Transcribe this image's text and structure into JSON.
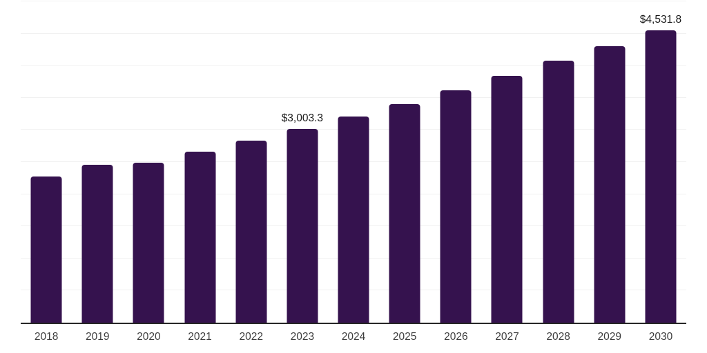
{
  "chart_data": {
    "type": "bar",
    "title": "",
    "xlabel": "",
    "ylabel": "",
    "categories": [
      "2018",
      "2019",
      "2020",
      "2021",
      "2022",
      "2023",
      "2024",
      "2025",
      "2026",
      "2027",
      "2028",
      "2029",
      "2030"
    ],
    "values": [
      2270,
      2450,
      2480,
      2650,
      2820,
      3003.3,
      3190,
      3390,
      3600,
      3820,
      4060,
      4290,
      4531.8
    ],
    "value_labels": [
      "",
      "",
      "",
      "",
      "",
      "$3,003.3",
      "",
      "",
      "",
      "",
      "",
      "",
      "$4,531.8"
    ],
    "ylim": [
      0,
      5000
    ],
    "grid_step": 500,
    "grid": "horizontal",
    "legend": false,
    "colors": {
      "bar": "#35124E",
      "axis": "#262626",
      "gridline": "#F1F1F1",
      "tick_label": "#3D3D3D",
      "value_label": "#1A1A1A",
      "background": "#FFFFFF"
    }
  }
}
